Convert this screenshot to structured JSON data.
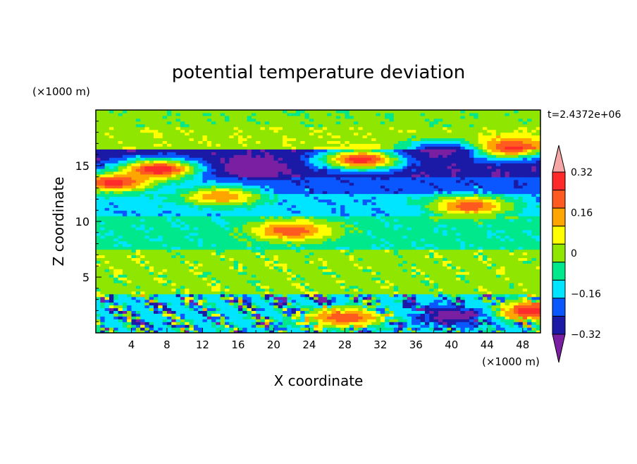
{
  "chart_data": {
    "type": "heatmap",
    "title": "potential temperature deviation",
    "xlabel": "X coordinate",
    "ylabel": "Z coordinate",
    "x_unit": "(×1000 m)",
    "y_unit": "(×1000 m)",
    "time_label": "t=2.4372e+06",
    "xlim": [
      0,
      50
    ],
    "ylim": [
      0,
      20
    ],
    "x_ticks": [
      4,
      8,
      12,
      16,
      20,
      24,
      28,
      32,
      36,
      40,
      44,
      48
    ],
    "y_ticks": [
      5,
      10,
      15
    ],
    "colorbar": {
      "levels": [
        -0.4,
        -0.32,
        -0.24,
        -0.16,
        -0.08,
        0,
        0.08,
        0.16,
        0.24,
        0.32,
        0.4
      ],
      "tick_labels": [
        "0.32",
        "0.16",
        "0",
        "−0.16",
        "−0.32"
      ],
      "tick_values": [
        0.32,
        0.16,
        0,
        -0.16,
        -0.32
      ],
      "colors": [
        "#7a1fa2",
        "#1a1aa6",
        "#0a56ff",
        "#00e5ff",
        "#00e88c",
        "#8fe600",
        "#ffff00",
        "#ffa500",
        "#ff5a1f",
        "#ff2a2a",
        "#f7a6a6"
      ],
      "extend": "both"
    },
    "bands": [
      {
        "z_range": [
          0,
          3.5
        ],
        "value": -0.12,
        "description": "mixed turbulent layer"
      },
      {
        "z_range": [
          3.5,
          7.5
        ],
        "value": 0.04
      },
      {
        "z_range": [
          7.5,
          10.5
        ],
        "value": -0.06
      },
      {
        "z_range": [
          10.5,
          12.5
        ],
        "value": -0.14
      },
      {
        "z_range": [
          12.5,
          14
        ],
        "value": -0.22
      },
      {
        "z_range": [
          14,
          16.5
        ],
        "value": -0.3
      },
      {
        "z_range": [
          16.5,
          18.5
        ],
        "value": 0.06
      },
      {
        "z_range": [
          18.5,
          20
        ],
        "value": 0.02
      }
    ],
    "anomalies": [
      {
        "x": 17,
        "z": 14.9,
        "value": -0.4
      },
      {
        "x": 7,
        "z": 14.7,
        "value": 0.4
      },
      {
        "x": 2,
        "z": 13.5,
        "value": 0.36
      },
      {
        "x": 30,
        "z": 15.6,
        "value": 0.38
      },
      {
        "x": 46,
        "z": 16.6,
        "value": 0.38
      },
      {
        "x": 42,
        "z": 11.4,
        "value": 0.3
      },
      {
        "x": 22,
        "z": 9.2,
        "value": 0.3
      },
      {
        "x": 14,
        "z": 12.3,
        "value": 0.24
      },
      {
        "x": 39,
        "z": 16.4,
        "value": -0.34
      },
      {
        "x": 49,
        "z": 2,
        "value": 0.4
      },
      {
        "x": 40,
        "z": 1.6,
        "value": -0.36
      },
      {
        "x": 28,
        "z": 1.4,
        "value": 0.32
      }
    ]
  }
}
